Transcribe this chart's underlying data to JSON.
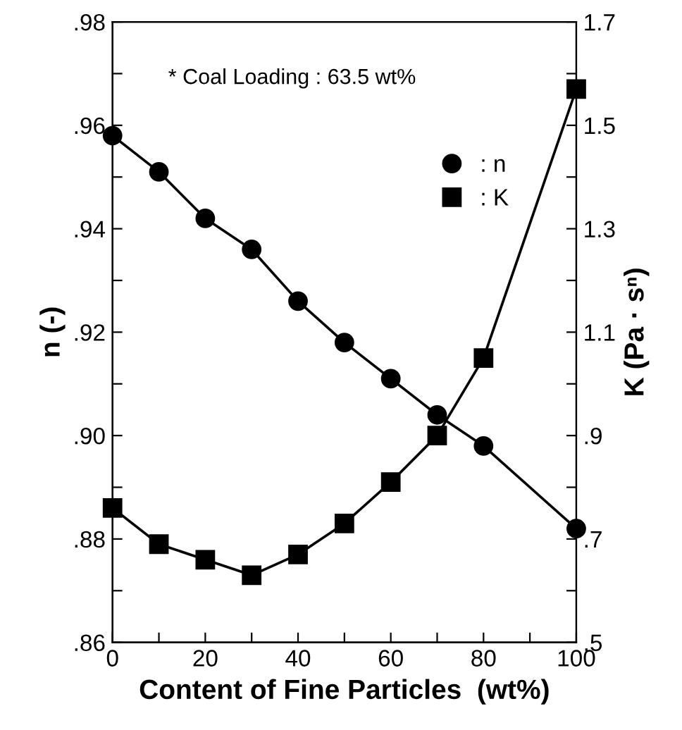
{
  "chart_data": {
    "type": "line",
    "xlabel": "Content of Fine Particles  (wt%)",
    "ylabel": "n (-)",
    "y2label": "K (Pa · sⁿ)",
    "annotations": [
      "* Coal Loading : 63.5 wt%"
    ],
    "x": [
      0,
      10,
      20,
      30,
      40,
      50,
      60,
      70,
      80,
      100
    ],
    "series": [
      {
        "name": ": n",
        "color": "#000000",
        "marker": "circle",
        "values": [
          0.958,
          0.951,
          0.942,
          0.936,
          0.926,
          0.918,
          0.911,
          0.904,
          0.898,
          0.882
        ]
      },
      {
        "name": ": K",
        "color": "#000000",
        "marker": "square",
        "axis": "y2",
        "values": [
          0.76,
          0.69,
          0.66,
          0.63,
          0.67,
          0.73,
          0.81,
          0.9,
          1.05,
          1.57
        ]
      }
    ],
    "xlim": [
      0,
      100
    ],
    "xticks": [
      0,
      {
        "value": 10,
        "label": null
      },
      20,
      {
        "value": 30,
        "label": null
      },
      40,
      {
        "value": 50,
        "label": null
      },
      60,
      {
        "value": 70,
        "label": null
      },
      80,
      {
        "value": 90,
        "label": null
      },
      100
    ],
    "ylim": [
      0.86,
      0.98
    ],
    "yticks": [
      {
        "value": 0.86,
        "label": ".86"
      },
      {
        "value": 0.87,
        "label": null
      },
      {
        "value": 0.88,
        "label": ".88"
      },
      {
        "value": 0.89,
        "label": null
      },
      {
        "value": 0.9,
        "label": ".90"
      },
      {
        "value": 0.91,
        "label": null
      },
      {
        "value": 0.92,
        "label": ".92"
      },
      {
        "value": 0.93,
        "label": null
      },
      {
        "value": 0.94,
        "label": ".94"
      },
      {
        "value": 0.95,
        "label": null
      },
      {
        "value": 0.96,
        "label": ".96"
      },
      {
        "value": 0.97,
        "label": null
      },
      {
        "value": 0.98,
        "label": ".98"
      }
    ],
    "y2lim": [
      0.5,
      1.7
    ],
    "y2ticks": [
      {
        "value": 0.5,
        "label": ".5"
      },
      {
        "value": 0.6,
        "label": null
      },
      {
        "value": 0.7,
        "label": ".7"
      },
      {
        "value": 0.8,
        "label": null
      },
      {
        "value": 0.9,
        "label": ".9"
      },
      {
        "value": 1.0,
        "label": null
      },
      1.1,
      {
        "value": 1.2,
        "label": null
      },
      1.3,
      {
        "value": 1.4,
        "label": null
      },
      1.5,
      {
        "value": 1.6,
        "label": null
      },
      1.7
    ],
    "grid": false,
    "legend": "top right",
    "line_style": "solid"
  }
}
